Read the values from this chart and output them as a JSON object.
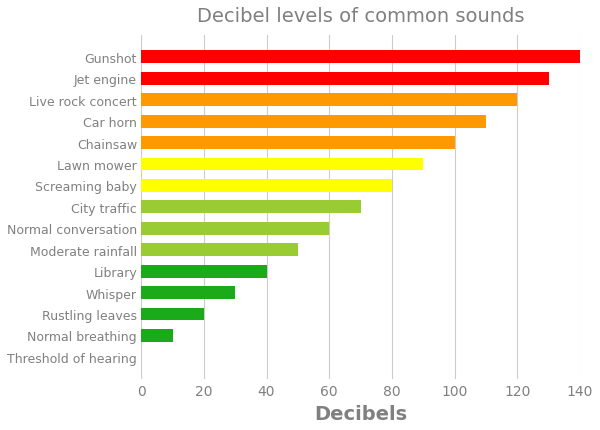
{
  "title": "Decibel levels of common sounds",
  "xlabel": "Decibels",
  "categories": [
    "Threshold of hearing",
    "Normal breathing",
    "Rustling leaves",
    "Whisper",
    "Library",
    "Moderate rainfall",
    "Normal conversation",
    "City traffic",
    "Screaming baby",
    "Lawn mower",
    "Chainsaw",
    "Car horn",
    "Live rock concert",
    "Jet engine",
    "Gunshot"
  ],
  "values": [
    0,
    10,
    20,
    30,
    40,
    50,
    60,
    70,
    80,
    90,
    100,
    110,
    120,
    130,
    140
  ],
  "colors": [
    "#1aaa1a",
    "#1aaa1a",
    "#1aaa1a",
    "#1aaa1a",
    "#1aaa1a",
    "#99cc33",
    "#99cc33",
    "#99cc33",
    "#ffff00",
    "#ffff00",
    "#ff9900",
    "#ff9900",
    "#ff9900",
    "#ff0000",
    "#ff0000"
  ],
  "xlim": [
    0,
    140
  ],
  "title_fontsize": 14,
  "xlabel_fontsize": 14,
  "ylabel_fontsize": 9,
  "xtick_fontsize": 10,
  "label_color": "#808080",
  "background_color": "#ffffff",
  "bar_height": 0.6,
  "grid_color": "#cccccc",
  "xticks": [
    0,
    20,
    40,
    60,
    80,
    100,
    120,
    140
  ]
}
